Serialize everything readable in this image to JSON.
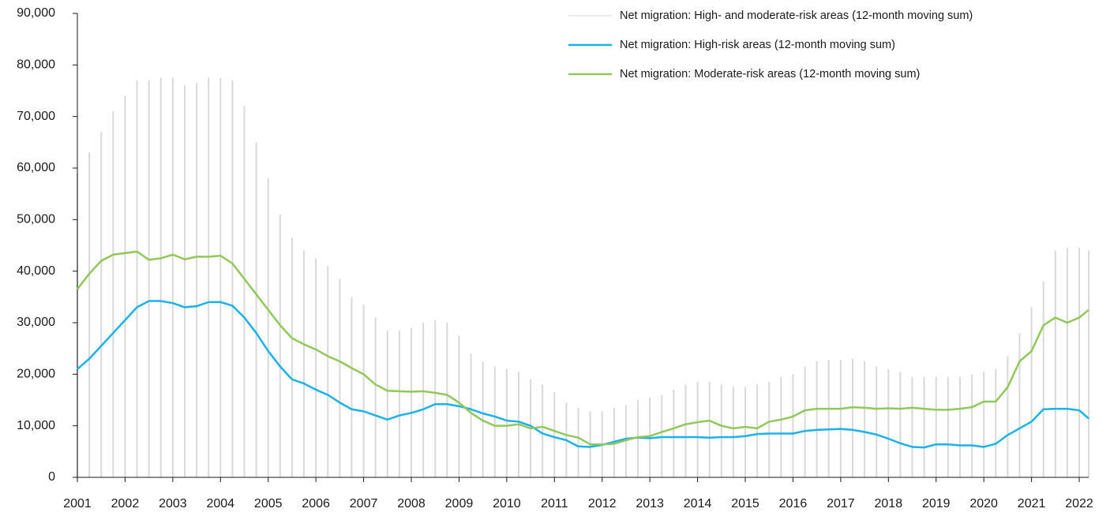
{
  "chart_data": {
    "type": "line",
    "x": [
      2001,
      2001.25,
      2001.5,
      2001.75,
      2002,
      2002.25,
      2002.5,
      2002.75,
      2003,
      2003.25,
      2003.5,
      2003.75,
      2004,
      2004.25,
      2004.5,
      2004.75,
      2005,
      2005.25,
      2005.5,
      2005.75,
      2006,
      2006.25,
      2006.5,
      2006.75,
      2007,
      2007.25,
      2007.5,
      2007.75,
      2008,
      2008.25,
      2008.5,
      2008.75,
      2009,
      2009.25,
      2009.5,
      2009.75,
      2010,
      2010.25,
      2010.5,
      2010.75,
      2011,
      2011.25,
      2011.5,
      2011.75,
      2012,
      2012.25,
      2012.5,
      2012.75,
      2013,
      2013.25,
      2013.5,
      2013.75,
      2014,
      2014.25,
      2014.5,
      2014.75,
      2015,
      2015.25,
      2015.5,
      2015.75,
      2016,
      2016.25,
      2016.5,
      2016.75,
      2017,
      2017.25,
      2017.5,
      2017.75,
      2018,
      2018.25,
      2018.5,
      2018.75,
      2019,
      2019.25,
      2019.5,
      2019.75,
      2020,
      2020.25,
      2020.5,
      2020.75,
      2021,
      2021.25,
      2021.5,
      2021.75,
      2022,
      2022.2
    ],
    "series": [
      {
        "name": "Net migration: High- and moderate-risk areas (12-month moving sum)",
        "color": "#d9d9d9",
        "style": "bars",
        "values": [
          59000,
          63000,
          67000,
          71000,
          74000,
          77000,
          77000,
          77500,
          77500,
          76000,
          76500,
          77500,
          77500,
          77000,
          72000,
          65000,
          58000,
          51000,
          46500,
          44000,
          42500,
          41000,
          38500,
          35000,
          33500,
          31000,
          28500,
          28500,
          29000,
          30000,
          30500,
          30000,
          27500,
          24000,
          22500,
          21500,
          21000,
          20500,
          19000,
          18000,
          16500,
          14500,
          13500,
          12800,
          12800,
          13500,
          14000,
          15000,
          15500,
          16000,
          17000,
          18000,
          18500,
          18500,
          18000,
          17500,
          17500,
          18000,
          18500,
          19500,
          20000,
          21500,
          22500,
          22800,
          22800,
          23000,
          22500,
          21500,
          21000,
          20500,
          19500,
          19500,
          19500,
          19500,
          19500,
          20000,
          20500,
          21000,
          23500,
          28000,
          33000,
          38000,
          44000,
          44500,
          44500,
          44000
        ]
      },
      {
        "name": "Net migration: High-risk areas (12-month moving sum)",
        "color": "#1ab2e8",
        "style": "line",
        "values": [
          21000,
          23000,
          25500,
          28000,
          30500,
          33000,
          34200,
          34200,
          33800,
          33000,
          33200,
          34000,
          34000,
          33300,
          31000,
          28000,
          24500,
          21500,
          19000,
          18200,
          17000,
          16000,
          14500,
          13200,
          12800,
          12000,
          11200,
          12000,
          12500,
          13200,
          14200,
          14200,
          13800,
          13200,
          12400,
          11800,
          11000,
          10800,
          10000,
          8500,
          7800,
          7200,
          6000,
          5900,
          6300,
          6900,
          7500,
          7700,
          7600,
          7800,
          7800,
          7800,
          7800,
          7700,
          7800,
          7800,
          8000,
          8400,
          8500,
          8500,
          8500,
          9000,
          9200,
          9300,
          9400,
          9200,
          8800,
          8300,
          7500,
          6600,
          5900,
          5800,
          6400,
          6400,
          6200,
          6200,
          5900,
          6500,
          8200,
          9500,
          10800,
          13200,
          13300,
          13300,
          13000,
          11400
        ]
      },
      {
        "name": "Net migration: Moderate-risk areas (12-month moving sum)",
        "color": "#92c75a",
        "style": "line",
        "values": [
          36500,
          39500,
          42000,
          43200,
          43500,
          43800,
          42200,
          42500,
          43200,
          42300,
          42800,
          42800,
          43000,
          41500,
          38500,
          35500,
          32500,
          29500,
          27000,
          25800,
          24800,
          23500,
          22500,
          21200,
          20000,
          18000,
          16800,
          16700,
          16600,
          16700,
          16400,
          16000,
          14500,
          12500,
          11000,
          10000,
          10000,
          10300,
          9500,
          9800,
          9000,
          8200,
          7700,
          6400,
          6400,
          6500,
          7200,
          7800,
          8000,
          8800,
          9500,
          10300,
          10700,
          11000,
          10000,
          9500,
          9800,
          9500,
          10800,
          11200,
          11800,
          13000,
          13300,
          13300,
          13300,
          13600,
          13500,
          13300,
          13400,
          13300,
          13500,
          13300,
          13100,
          13100,
          13300,
          13600,
          14700,
          14700,
          17500,
          22500,
          24500,
          29500,
          31000,
          30000,
          31000,
          32500
        ]
      }
    ],
    "xlim": [
      2001,
      2022.2
    ],
    "xticks": [
      2001,
      2002,
      2003,
      2004,
      2005,
      2006,
      2007,
      2008,
      2009,
      2010,
      2011,
      2012,
      2013,
      2014,
      2015,
      2016,
      2017,
      2018,
      2019,
      2020,
      2021,
      2022
    ],
    "ylim": [
      0,
      90000
    ],
    "yticks": [
      0,
      {
        "value": 10000,
        "label": "10,000"
      },
      {
        "value": 20000,
        "label": "20,000"
      },
      {
        "value": 30000,
        "label": "30,000"
      },
      {
        "value": 40000,
        "label": "40,000"
      },
      {
        "value": 50000,
        "label": "50,000"
      },
      {
        "value": 60000,
        "label": "60,000"
      },
      {
        "value": 70000,
        "label": "70,000"
      },
      {
        "value": 80000,
        "label": "80,000"
      },
      {
        "value": 90000,
        "label": "90,000"
      }
    ],
    "legend": "top-right"
  }
}
